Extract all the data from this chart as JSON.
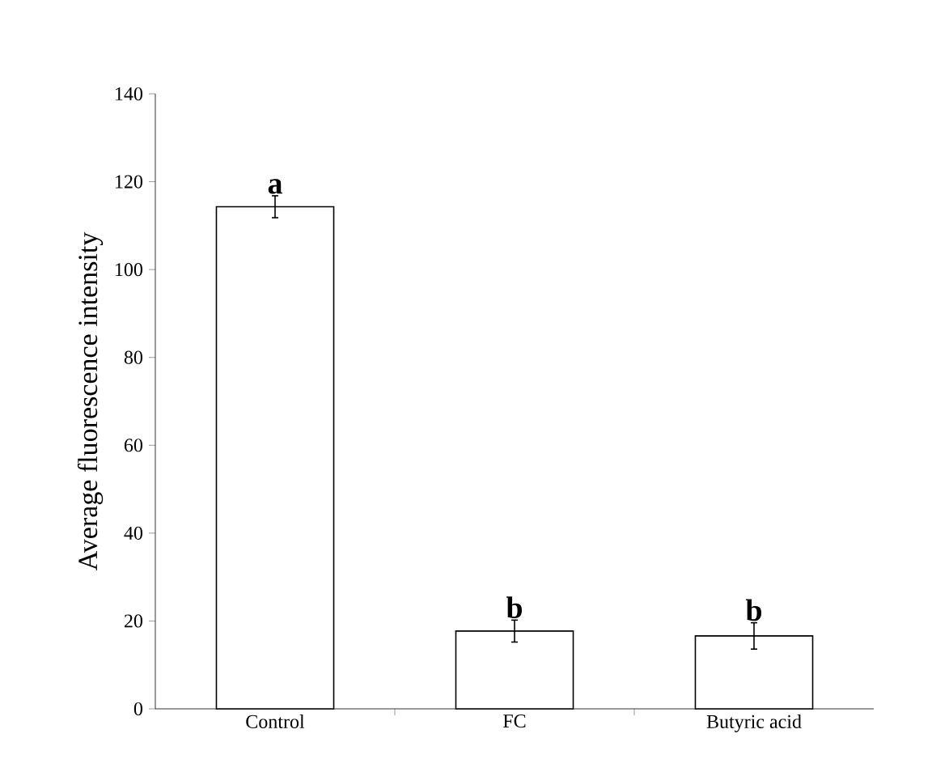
{
  "chart_data": {
    "type": "bar",
    "ylabel": "Average fluorescence intensity",
    "categories": [
      "Control",
      "FC",
      "Butyric acid"
    ],
    "values": [
      114.3,
      17.7,
      16.6
    ],
    "errors": [
      2.5,
      2.5,
      3
    ],
    "color": "#ffffff",
    "ylim": [
      0,
      140
    ],
    "yticks": [
      0,
      20,
      40,
      60,
      80,
      100,
      120,
      140
    ],
    "annotations": [
      {
        "text": "a",
        "x": "Control",
        "y": 116.8
      },
      {
        "text": "b",
        "x": "FC",
        "y": 20.2
      },
      {
        "text": "b",
        "x": "Butyric acid",
        "y": 19.6
      }
    ]
  }
}
